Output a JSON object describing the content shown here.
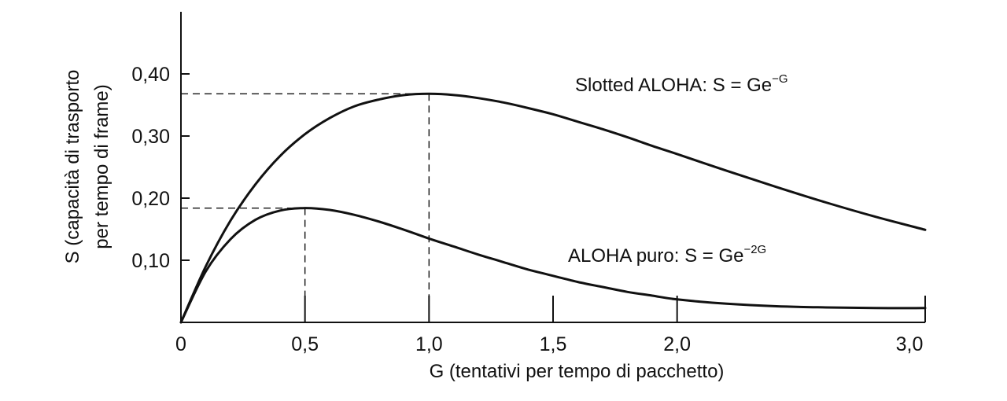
{
  "chart_data": {
    "type": "line",
    "xlabel": "G (tentativi per tempo di pacchetto)",
    "ylabel_line1": "S (capacità di trasporto",
    "ylabel_line2": "per tempo di frame)",
    "xlim": [
      0,
      3.0
    ],
    "ylim": [
      0,
      0.5
    ],
    "x_ticks": [
      0,
      0.5,
      1.0,
      1.5,
      2.0,
      3.0
    ],
    "x_tick_labels": [
      "0",
      "0,5",
      "1,0",
      "1,5",
      "2,0",
      "3,0"
    ],
    "y_ticks": [
      0.1,
      0.2,
      0.3,
      0.4
    ],
    "y_tick_labels": [
      "0,10",
      "0,20",
      "0,30",
      "0,40"
    ],
    "grid": false,
    "series": [
      {
        "name": "Slotted ALOHA",
        "label_text": "Slotted ALOHA: S = Ge",
        "label_exp": "−G",
        "x": [
          0,
          0.1,
          0.2,
          0.3,
          0.4,
          0.5,
          0.6,
          0.7,
          0.8,
          0.9,
          1.0,
          1.1,
          1.2,
          1.3,
          1.4,
          1.5,
          1.6,
          1.7,
          1.8,
          1.9,
          2.0,
          2.2,
          2.4,
          2.6,
          2.8,
          3.0
        ],
        "values": [
          0,
          0.09,
          0.164,
          0.222,
          0.268,
          0.303,
          0.329,
          0.348,
          0.359,
          0.366,
          0.368,
          0.366,
          0.361,
          0.354,
          0.345,
          0.335,
          0.323,
          0.311,
          0.298,
          0.284,
          0.271,
          0.244,
          0.218,
          0.193,
          0.17,
          0.149
        ],
        "peak": {
          "x": 1.0,
          "y": 0.368
        }
      },
      {
        "name": "ALOHA puro",
        "label_text": "ALOHA puro: S = Ge",
        "label_exp": "−2G",
        "x": [
          0,
          0.1,
          0.2,
          0.3,
          0.4,
          0.5,
          0.6,
          0.7,
          0.8,
          0.9,
          1.0,
          1.1,
          1.2,
          1.3,
          1.4,
          1.5,
          1.6,
          1.7,
          1.8,
          1.9,
          2.0,
          2.2,
          2.4,
          2.6,
          2.8,
          3.0
        ],
        "values": [
          0,
          0.082,
          0.134,
          0.165,
          0.18,
          0.184,
          0.181,
          0.173,
          0.162,
          0.149,
          0.135,
          0.122,
          0.109,
          0.097,
          0.085,
          0.075,
          0.065,
          0.057,
          0.049,
          0.043,
          0.037,
          0.03,
          0.026,
          0.024,
          0.023,
          0.023
        ],
        "peak": {
          "x": 0.5,
          "y": 0.184
        }
      }
    ]
  }
}
